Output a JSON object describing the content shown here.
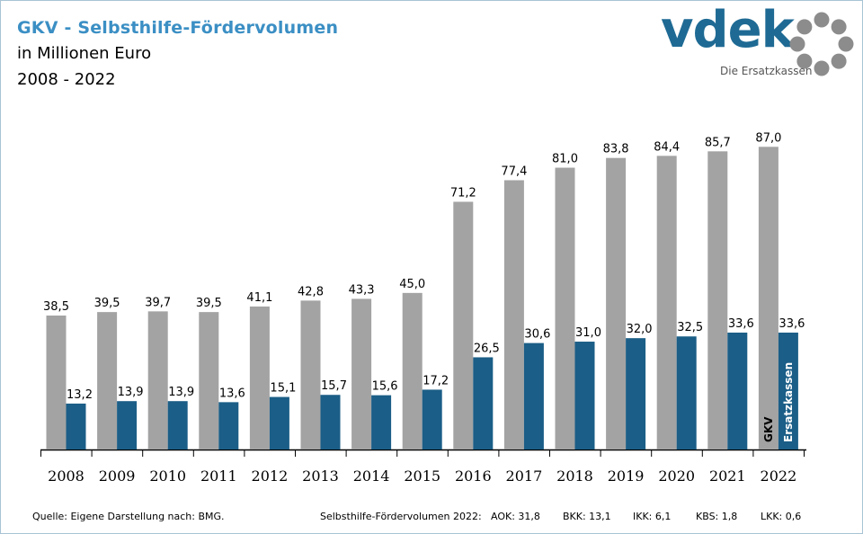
{
  "header": {
    "title": "GKV - Selbsthilfe-Fördervolumen",
    "subtitle": "in Millionen Euro",
    "period": "2008 - 2022"
  },
  "logo": {
    "wordmark": "vdek",
    "tagline": "Die Ersatzkassen",
    "color": "#1e6a94",
    "ring_color": "#8c8c8c"
  },
  "chart_data": {
    "type": "bar",
    "categories": [
      "2008",
      "2009",
      "2010",
      "2011",
      "2012",
      "2013",
      "2014",
      "2015",
      "2016",
      "2017",
      "2018",
      "2019",
      "2020",
      "2021",
      "2022"
    ],
    "series": [
      {
        "name": "GKV",
        "color": "#a3a3a3",
        "values": [
          38.5,
          39.5,
          39.7,
          39.5,
          41.1,
          42.8,
          43.3,
          45.0,
          71.2,
          77.4,
          81.0,
          83.8,
          84.4,
          85.7,
          87.0
        ]
      },
      {
        "name": "Ersatzkassen",
        "color": "#1b5e87",
        "values": [
          13.2,
          13.9,
          13.9,
          13.6,
          15.1,
          15.7,
          15.6,
          17.2,
          26.5,
          30.6,
          31.0,
          32.0,
          32.5,
          33.6,
          33.6
        ]
      }
    ],
    "ylim": [
      0,
      90
    ],
    "grid": false,
    "decimal_separator": ","
  },
  "footer": {
    "source": "Quelle: Eigene Darstellung nach: BMG.",
    "breakdown_label": "Selbsthilfe-Fördervolumen 2022:",
    "breakdown": [
      {
        "label": "AOK: 31,8"
      },
      {
        "label": "BKK: 13,1"
      },
      {
        "label": "IKK: 6,1"
      },
      {
        "label": "KBS: 1,8"
      },
      {
        "label": "LKK: 0,6"
      }
    ]
  }
}
